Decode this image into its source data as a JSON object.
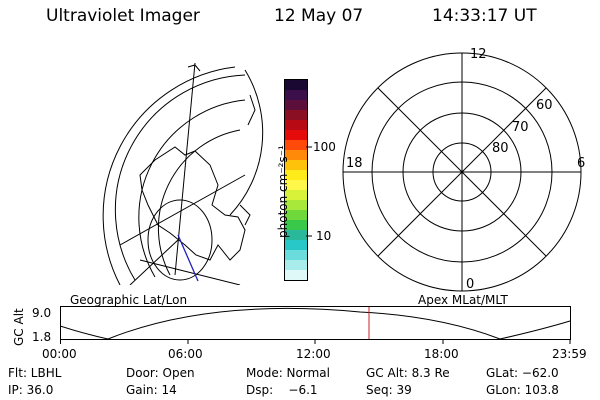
{
  "header": {
    "instrument": "Ultraviolet Imager",
    "date": "12 May 07",
    "time": "14:33:17 UT"
  },
  "colorbar": {
    "unit_label": "photon cm⁻²s⁻¹",
    "ticks": [
      "100",
      "10"
    ],
    "colors": [
      "#1a0833",
      "#3a0f4a",
      "#5c0f3a",
      "#8a0f22",
      "#b80a14",
      "#e60b0b",
      "#ff4a0a",
      "#ff8a0a",
      "#ffc20a",
      "#ffea1a",
      "#fff84a",
      "#d8f23a",
      "#a8e83a",
      "#6fd83a",
      "#3ac84a",
      "#2ab89a",
      "#28c8c8",
      "#6adcdc",
      "#a8ecec",
      "#dff8f8"
    ]
  },
  "polar_plot": {
    "mlt_labels": {
      "top": "12",
      "left": "18",
      "right": "6",
      "bottom": "0"
    },
    "lat_labels": [
      "60",
      "70",
      "80"
    ],
    "caption": "Apex MLat/MLT"
  },
  "geo_plot": {
    "caption": "Geographic Lat/Lon"
  },
  "timeline": {
    "y_axis_label": "GC Alt",
    "y_ticks": [
      "9.0",
      "1.8"
    ],
    "x_ticks": [
      "00:00",
      "06:00",
      "12:00",
      "18:00",
      "23:59"
    ],
    "marker_color": "#d02020"
  },
  "info": {
    "row1": [
      "Flt: LBHL",
      "Door: Open",
      "Mode: Normal",
      "GC Alt: 8.3 Re",
      "GLat: −62.0"
    ],
    "row2": [
      "IP: 36.0",
      "Gain: 14",
      "Dsp:    −6.1",
      "Seq: 39",
      "GLon: 103.8"
    ]
  }
}
